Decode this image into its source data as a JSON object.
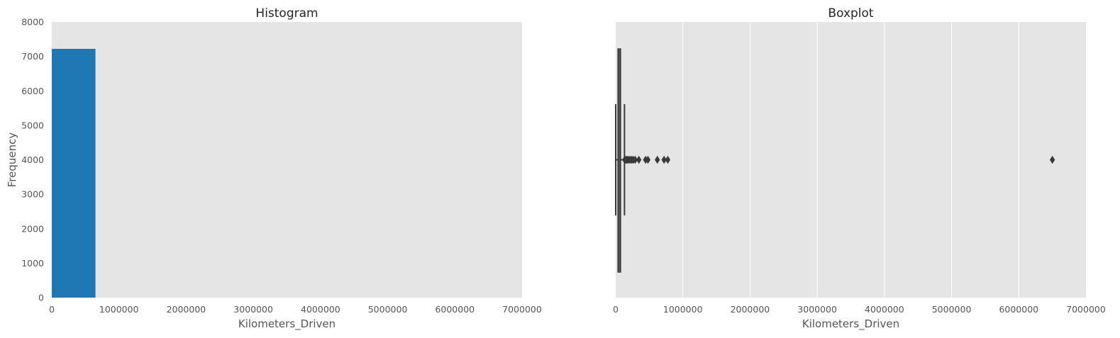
{
  "chart_data": [
    {
      "type": "bar",
      "title": "Histogram",
      "xlabel": "Kilometers_Driven",
      "ylabel": "Frequency",
      "xlim": [
        0,
        7000000
      ],
      "ylim": [
        0,
        8000
      ],
      "xticks": [
        0,
        1000000,
        2000000,
        3000000,
        4000000,
        5000000,
        6000000,
        7000000
      ],
      "xtick_labels": [
        "0",
        "1000000",
        "2000000",
        "3000000",
        "4000000",
        "5000000",
        "6000000",
        "7000000"
      ],
      "yticks": [
        0,
        1000,
        2000,
        3000,
        4000,
        5000,
        6000,
        7000,
        8000
      ],
      "ytick_labels": [
        "0",
        "1000",
        "2000",
        "3000",
        "4000",
        "5000",
        "6000",
        "7000",
        "8000"
      ],
      "grid": false,
      "bars": [
        {
          "x0": 0,
          "x1": 650000,
          "count": 7220
        }
      ],
      "bar_color": "#1f77b4"
    },
    {
      "type": "boxplot",
      "title": "Boxplot",
      "xlabel": "Kilometers_Driven",
      "xlim": [
        0,
        7000000
      ],
      "xticks": [
        0,
        1000000,
        2000000,
        3000000,
        4000000,
        5000000,
        6000000,
        7000000
      ],
      "xtick_labels": [
        "0",
        "1000000",
        "2000000",
        "3000000",
        "4000000",
        "5000000",
        "6000000",
        "7000000"
      ],
      "grid": true,
      "box": {
        "whisker_low": 171,
        "q1": 34000,
        "median": 53000,
        "q3": 73000,
        "whisker_high": 131000
      },
      "outliers": [
        135000,
        150000,
        165000,
        180000,
        200000,
        220000,
        240000,
        262000,
        290000,
        345000,
        445000,
        480000,
        620000,
        720000,
        775000,
        6500000
      ],
      "box_color": "#3a3a3a"
    }
  ]
}
